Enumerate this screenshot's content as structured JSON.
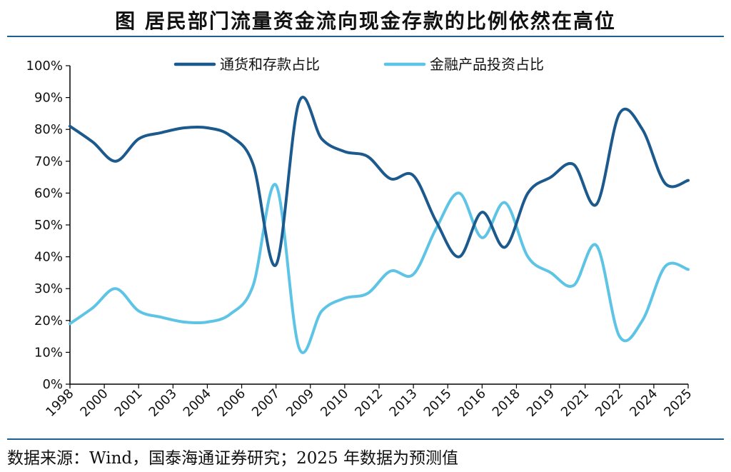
{
  "title": "图  居民部门流量资金流向现金存款的比例依然在高位",
  "source": "数据来源：Wind，国泰海通证券研究；2025 年数据为预测值",
  "chart_data": {
    "type": "line",
    "title": "图  居民部门流量资金流向现金存款的比例依然在高位",
    "xlabel": "",
    "ylabel": "",
    "ylim": [
      0,
      100
    ],
    "yticks": [
      "0%",
      "10%",
      "20%",
      "30%",
      "40%",
      "50%",
      "60%",
      "70%",
      "80%",
      "90%",
      "100%"
    ],
    "xticks": [
      "1998",
      "2000",
      "2001",
      "2003",
      "2004",
      "2006",
      "2007",
      "2009",
      "2010",
      "2012",
      "2013",
      "2015",
      "2016",
      "2018",
      "2019",
      "2021",
      "2022",
      "2024",
      "2025"
    ],
    "x": [
      1998,
      1999,
      2000,
      2001,
      2002,
      2003,
      2004,
      2005,
      2006,
      2007,
      2008,
      2009,
      2010,
      2011,
      2012,
      2013,
      2014,
      2015,
      2016,
      2017,
      2018,
      2019,
      2020,
      2021,
      2022,
      2023,
      2024,
      2025
    ],
    "legend_position": "top",
    "grid": false,
    "series": [
      {
        "name": "通货和存款占比",
        "color": "#1c5a8e",
        "values": [
          81,
          76,
          70,
          77,
          79,
          80.5,
          80.5,
          78,
          69,
          37.5,
          88.5,
          77,
          73,
          71.5,
          64.5,
          65.5,
          51,
          40,
          54,
          43,
          60,
          65,
          69,
          56.5,
          85,
          80,
          63,
          64
        ]
      },
      {
        "name": "金融产品投资占比",
        "color": "#5ec4e5",
        "values": [
          19,
          24,
          30,
          23,
          21,
          19.5,
          19.5,
          22,
          31,
          62.5,
          11.5,
          23,
          27,
          28.5,
          35.5,
          34.5,
          49,
          60,
          46,
          57,
          40,
          35,
          31,
          43.5,
          15,
          20,
          37,
          36
        ]
      }
    ]
  }
}
